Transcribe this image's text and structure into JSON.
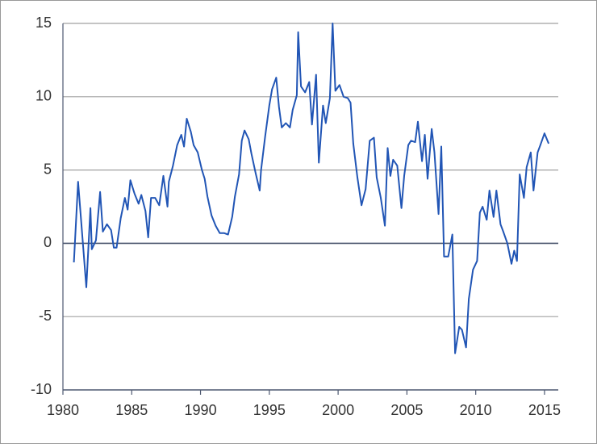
{
  "chart_data": {
    "type": "line",
    "x": [
      1980.8,
      1981.1,
      1981.7,
      1982.0,
      1982.1,
      1982.4,
      1982.7,
      1982.9,
      1983.2,
      1983.5,
      1983.7,
      1983.9,
      1984.2,
      1984.5,
      1984.7,
      1984.9,
      1985.2,
      1985.5,
      1985.7,
      1986.0,
      1986.2,
      1986.4,
      1986.7,
      1987.0,
      1987.3,
      1987.6,
      1987.7,
      1988.0,
      1988.3,
      1988.6,
      1988.8,
      1989.0,
      1989.3,
      1989.5,
      1989.8,
      1990.1,
      1990.3,
      1990.5,
      1990.8,
      1991.1,
      1991.4,
      1991.7,
      1992.0,
      1992.3,
      1992.5,
      1992.8,
      1993.0,
      1993.2,
      1993.5,
      1993.7,
      1994.0,
      1994.3,
      1994.4,
      1994.7,
      1995.0,
      1995.2,
      1995.5,
      1995.7,
      1995.9,
      1996.2,
      1996.5,
      1996.7,
      1997.0,
      1997.1,
      1997.3,
      1997.6,
      1997.9,
      1998.1,
      1998.4,
      1998.6,
      1998.9,
      1999.1,
      1999.4,
      1999.6,
      1999.8,
      2000.1,
      2000.4,
      2000.7,
      2000.9,
      2001.1,
      2001.4,
      2001.7,
      2002.0,
      2002.3,
      2002.6,
      2002.8,
      2003.1,
      2003.4,
      2003.6,
      2003.8,
      2004.0,
      2004.3,
      2004.6,
      2004.8,
      2005.1,
      2005.3,
      2005.6,
      2005.8,
      2006.1,
      2006.3,
      2006.5,
      2006.8,
      2007.0,
      2007.3,
      2007.5,
      2007.7,
      2008.0,
      2008.3,
      2008.5,
      2008.8,
      2009.0,
      2009.3,
      2009.5,
      2009.8,
      2010.1,
      2010.3,
      2010.5,
      2010.8,
      2011.0,
      2011.3,
      2011.5,
      2011.8,
      2012.0,
      2012.3,
      2012.6,
      2012.8,
      2013.0,
      2013.2,
      2013.5,
      2013.7,
      2014.0,
      2014.2,
      2014.5,
      2014.7,
      2015.0,
      2015.3
    ],
    "series": [
      {
        "color": "#2155b5",
        "values": [
          -1.3,
          4.2,
          -3.0,
          2.4,
          -0.4,
          0.2,
          3.5,
          0.8,
          1.3,
          0.9,
          -0.3,
          -0.3,
          1.7,
          3.1,
          2.3,
          4.3,
          3.4,
          2.7,
          3.3,
          2.2,
          0.4,
          3.1,
          3.1,
          2.6,
          4.6,
          2.5,
          4.2,
          5.3,
          6.7,
          7.4,
          6.6,
          8.5,
          7.6,
          6.7,
          6.2,
          5.0,
          4.4,
          3.2,
          1.9,
          1.2,
          0.7,
          0.7,
          0.6,
          1.8,
          3.2,
          4.7,
          7.0,
          7.7,
          7.1,
          6.1,
          4.8,
          3.6,
          5.0,
          7.3,
          9.4,
          10.5,
          11.3,
          9.3,
          7.9,
          8.2,
          7.9,
          9.1,
          10.1,
          14.4,
          10.7,
          10.3,
          11.0,
          8.1,
          11.5,
          5.5,
          9.4,
          8.2,
          9.9,
          15.0,
          10.4,
          10.8,
          10.0,
          9.9,
          9.6,
          6.8,
          4.5,
          2.6,
          3.7,
          7.0,
          7.2,
          4.5,
          3.1,
          1.2,
          6.5,
          4.6,
          5.7,
          5.3,
          2.4,
          4.6,
          6.7,
          7.0,
          6.9,
          8.3,
          5.6,
          7.4,
          4.4,
          7.8,
          6.2,
          2.0,
          6.6,
          -0.9,
          -0.9,
          0.6,
          -7.5,
          -5.7,
          -5.9,
          -7.1,
          -3.8,
          -1.8,
          -1.2,
          2.1,
          2.5,
          1.6,
          3.6,
          1.8,
          3.6,
          1.3,
          0.8,
          0.0,
          -1.4,
          -0.5,
          -1.2,
          4.7,
          3.1,
          5.2,
          6.2,
          3.6,
          6.2,
          6.7,
          7.5,
          6.8
        ]
      }
    ],
    "xlim": [
      1980,
      2016
    ],
    "xticks": [
      1980,
      1985,
      1990,
      1995,
      2000,
      2005,
      2010,
      2015
    ],
    "ylim": [
      -10,
      15
    ],
    "yticks": [
      15,
      10,
      5,
      0,
      -5,
      -10
    ],
    "grid": true
  }
}
